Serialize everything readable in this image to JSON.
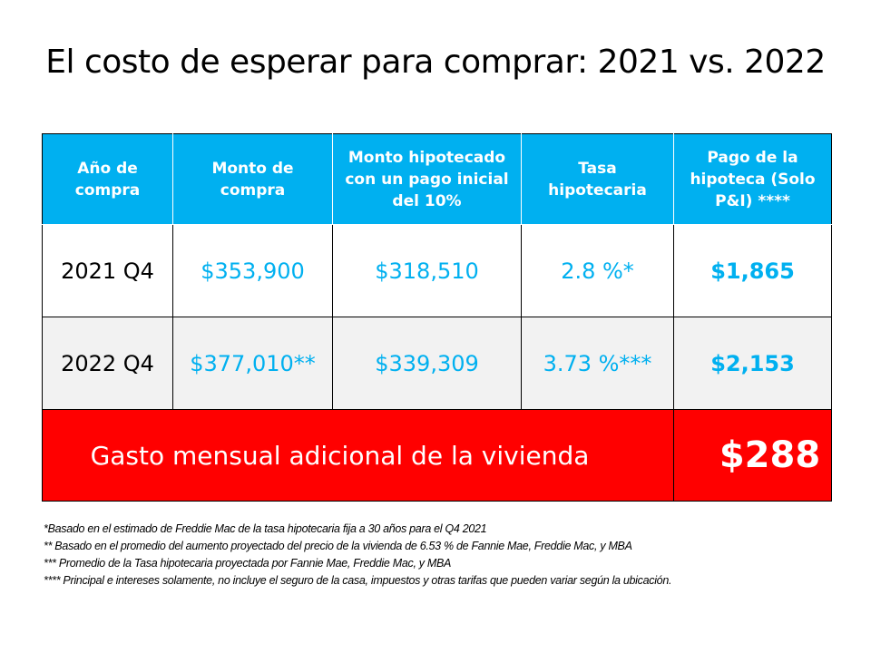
{
  "title": "El costo de esperar para comprar: 2021 vs. 2022",
  "colors": {
    "header": "#00B0F0",
    "value_text": "#00B0F0",
    "summary": "#FF0000",
    "alt_row": "#F2F2F2"
  },
  "table": {
    "headers": [
      "Año de compra",
      "Monto de compra",
      "Monto hipotecado con un pago inicial del 10%",
      "Tasa hipotecaria",
      "Pago de la hipoteca (Solo P&I) ****"
    ],
    "rows": [
      [
        "2021 Q4",
        "$353,900",
        "$318,510",
        "2.8 %*",
        "$1,865"
      ],
      [
        "2022 Q4",
        "$377,010**",
        "$339,309",
        "3.73 %***",
        "$2,153"
      ]
    ],
    "summary_label": "Gasto mensual adicional de la vivienda",
    "summary_value": "$288"
  },
  "footnotes": [
    "*Basado en el estimado de Freddie Mac de la tasa hipotecaria fija a 30 años para el Q4 2021",
    "** Basado en el promedio del aumento proyectado del precio de la vivienda de 6.53 % de Fannie Mae, Freddie Mac, y MBA",
    "*** Promedio de la Tasa hipotecaria proyectada por Fannie Mae, Freddie Mac, y MBA",
    "**** Principal e intereses solamente, no incluye el seguro de la casa, impuestos y otras tarifas que pueden variar según la ubicación."
  ]
}
